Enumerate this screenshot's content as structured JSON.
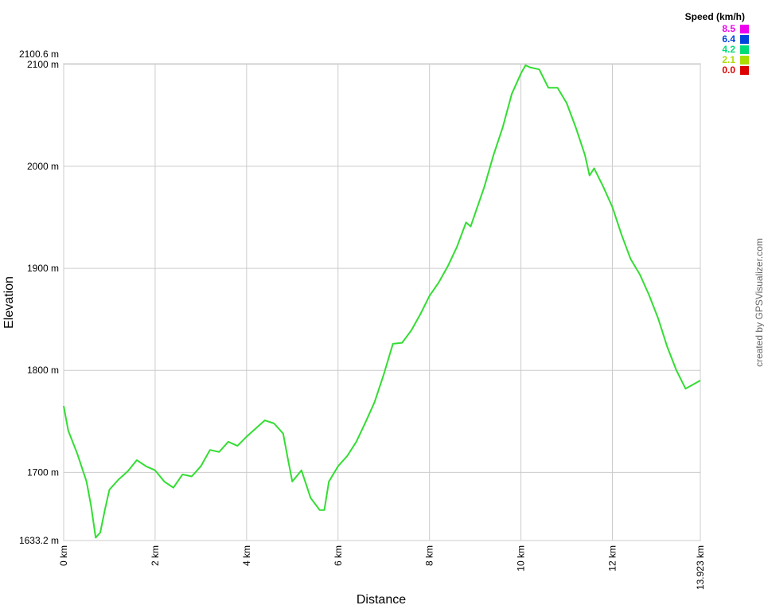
{
  "chart_data": {
    "type": "line",
    "x_label": "Distance",
    "y_label": "Elevation",
    "credit": "created by GPSVisualizer.com",
    "xlim": [
      0,
      13.923
    ],
    "ylim": [
      1633.2,
      2100.6
    ],
    "xticks": [
      {
        "value": 0,
        "label": "0 km"
      },
      {
        "value": 2,
        "label": "2 km"
      },
      {
        "value": 4,
        "label": "4 km"
      },
      {
        "value": 6,
        "label": "6 km"
      },
      {
        "value": 8,
        "label": "8 km"
      },
      {
        "value": 10,
        "label": "10 km"
      },
      {
        "value": 12,
        "label": "12 km"
      },
      {
        "value": 13.923,
        "label": "13.923 km"
      }
    ],
    "yticks": [
      {
        "value": 1633.2,
        "label": "1633.2 m"
      },
      {
        "value": 1700,
        "label": "1700 m"
      },
      {
        "value": 1800,
        "label": "1800 m"
      },
      {
        "value": 1900,
        "label": "1900 m"
      },
      {
        "value": 2000,
        "label": "2000 m"
      },
      {
        "value": 2100,
        "label": "2100 m"
      },
      {
        "value": 2100.6,
        "label": "2100.6 m"
      }
    ],
    "grid": true,
    "x": [
      0,
      0.1,
      0.3,
      0.5,
      0.6,
      0.7,
      0.8,
      0.9,
      1.0,
      1.2,
      1.4,
      1.6,
      1.8,
      2.0,
      2.2,
      2.4,
      2.6,
      2.8,
      3.0,
      3.2,
      3.4,
      3.6,
      3.8,
      4.0,
      4.2,
      4.4,
      4.6,
      4.8,
      4.9,
      5.0,
      5.2,
      5.4,
      5.6,
      5.7,
      5.8,
      6.0,
      6.2,
      6.4,
      6.6,
      6.8,
      7.0,
      7.2,
      7.4,
      7.6,
      7.8,
      8.0,
      8.2,
      8.4,
      8.6,
      8.8,
      8.9,
      9.0,
      9.2,
      9.4,
      9.6,
      9.8,
      10.0,
      10.1,
      10.2,
      10.4,
      10.6,
      10.8,
      11.0,
      11.2,
      11.4,
      11.5,
      11.6,
      11.8,
      12.0,
      12.2,
      12.4,
      12.6,
      12.8,
      13.0,
      13.2,
      13.4,
      13.6,
      13.8,
      13.923
    ],
    "series": [
      {
        "color": "#33dd33",
        "values": [
          1765,
          1741,
          1718,
          1691,
          1667,
          1636,
          1641,
          1663,
          1683,
          1693,
          1701,
          1712,
          1706,
          1702,
          1691,
          1685,
          1698,
          1696,
          1706,
          1722,
          1720,
          1730,
          1726,
          1735,
          1743,
          1751,
          1748,
          1738,
          1714,
          1691,
          1702,
          1675,
          1663,
          1663,
          1691,
          1706,
          1716,
          1730,
          1749,
          1769,
          1796,
          1826,
          1827,
          1839,
          1855,
          1873,
          1886,
          1902,
          1921,
          1945,
          1941,
          1954,
          1980,
          2011,
          2038,
          2071,
          2091,
          2099,
          2097,
          2095,
          2077,
          2077,
          2062,
          2038,
          2011,
          1991,
          1998,
          1980,
          1960,
          1933,
          1909,
          1894,
          1874,
          1851,
          1823,
          1800,
          1782,
          1787,
          1790
        ]
      }
    ],
    "speed_legend": {
      "title": "Speed (km/h)",
      "values": [
        8.5,
        6.4,
        4.2,
        2.1,
        0.0
      ],
      "value_labels": [
        "8.5",
        "6.4",
        "4.2",
        "2.1",
        "0.0"
      ],
      "colors": [
        "#ee00ee",
        "#0044dd",
        "#00dd77",
        "#aadd00",
        "#dd0000"
      ]
    }
  }
}
